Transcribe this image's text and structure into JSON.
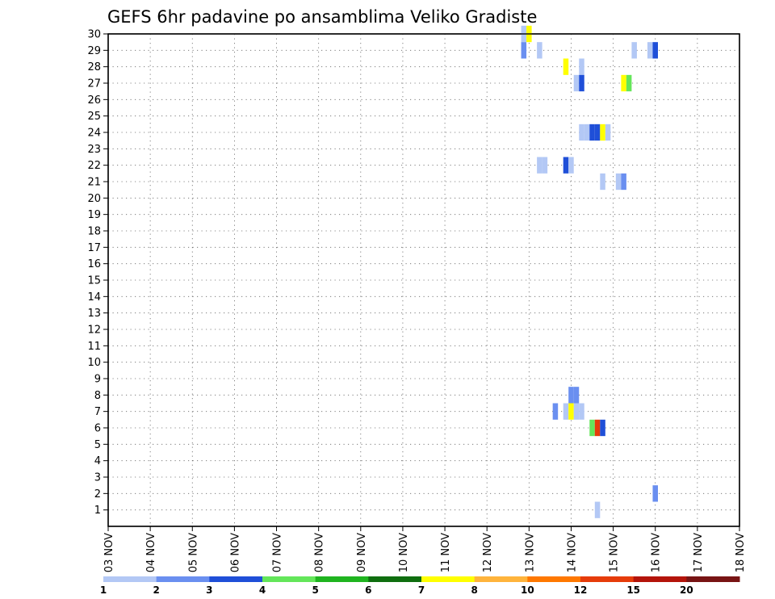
{
  "chart_data": {
    "type": "heatmap",
    "title": "GEFS 6hr padavine po ansamblima Veliko Gradiste",
    "x_tick_labels": [
      "03 NOV",
      "04 NOV",
      "05 NOV",
      "06 NOV",
      "07 NOV",
      "08 NOV",
      "09 NOV",
      "10 NOV",
      "11 NOV",
      "12 NOV",
      "13 NOV",
      "14 NOV",
      "15 NOV",
      "16 NOV",
      "17 NOV",
      "18 NOV"
    ],
    "y_tick_labels": [
      "1",
      "2",
      "3",
      "4",
      "5",
      "6",
      "7",
      "8",
      "9",
      "10",
      "11",
      "12",
      "13",
      "14",
      "15",
      "16",
      "17",
      "18",
      "19",
      "20",
      "21",
      "22",
      "23",
      "24",
      "25",
      "26",
      "27",
      "28",
      "29",
      "30"
    ],
    "xlim": [
      0,
      60
    ],
    "ylim": [
      0,
      30
    ],
    "grid": true,
    "color_levels": [
      {
        "label": "1",
        "color": "#b3c8f5"
      },
      {
        "label": "2",
        "color": "#6a8ff0"
      },
      {
        "label": "3",
        "color": "#1f4fd8"
      },
      {
        "label": "4",
        "color": "#64e65a"
      },
      {
        "label": "5",
        "color": "#1fb41f"
      },
      {
        "label": "6",
        "color": "#0f6e0f"
      },
      {
        "label": "7",
        "color": "#ffff00"
      },
      {
        "label": "8",
        "color": "#ffb43c"
      },
      {
        "label": "10",
        "color": "#ff7800"
      },
      {
        "label": "12",
        "color": "#e63c0a"
      },
      {
        "label": "15",
        "color": "#b4140a"
      },
      {
        "label": "20",
        "color": "#781414"
      }
    ],
    "cells": [
      {
        "member": 30,
        "step": 39.5,
        "level": 0
      },
      {
        "member": 30,
        "step": 40,
        "level": 6
      },
      {
        "member": 29,
        "step": 39.5,
        "level": 1
      },
      {
        "member": 29,
        "step": 41,
        "level": 0
      },
      {
        "member": 29,
        "step": 50,
        "level": 0
      },
      {
        "member": 29,
        "step": 51.5,
        "level": 0
      },
      {
        "member": 29,
        "step": 52,
        "level": 2
      },
      {
        "member": 28,
        "step": 43.5,
        "level": 6
      },
      {
        "member": 28,
        "step": 45,
        "level": 0
      },
      {
        "member": 27,
        "step": 44.5,
        "level": 0
      },
      {
        "member": 27,
        "step": 45,
        "level": 2
      },
      {
        "member": 27,
        "step": 49,
        "level": 6
      },
      {
        "member": 27,
        "step": 49.5,
        "level": 3
      },
      {
        "member": 24,
        "step": 45,
        "level": 0
      },
      {
        "member": 24,
        "step": 45.5,
        "level": 0
      },
      {
        "member": 24,
        "step": 46,
        "level": 2
      },
      {
        "member": 24,
        "step": 46.5,
        "level": 2
      },
      {
        "member": 24,
        "step": 47,
        "level": 6
      },
      {
        "member": 24,
        "step": 47.5,
        "level": 0
      },
      {
        "member": 22,
        "step": 41,
        "level": 0
      },
      {
        "member": 22,
        "step": 41.5,
        "level": 0
      },
      {
        "member": 22,
        "step": 43.5,
        "level": 2
      },
      {
        "member": 22,
        "step": 44,
        "level": 0
      },
      {
        "member": 21,
        "step": 47,
        "level": 0
      },
      {
        "member": 21,
        "step": 48.5,
        "level": 0
      },
      {
        "member": 21,
        "step": 49,
        "level": 1
      },
      {
        "member": 8,
        "step": 44,
        "level": 1
      },
      {
        "member": 8,
        "step": 44.5,
        "level": 1
      },
      {
        "member": 7,
        "step": 42.5,
        "level": 1
      },
      {
        "member": 7,
        "step": 43.5,
        "level": 0
      },
      {
        "member": 7,
        "step": 44,
        "level": 6
      },
      {
        "member": 7,
        "step": 44.5,
        "level": 0
      },
      {
        "member": 7,
        "step": 45,
        "level": 0
      },
      {
        "member": 6,
        "step": 46,
        "level": 3
      },
      {
        "member": 6,
        "step": 46.5,
        "level": 9
      },
      {
        "member": 6,
        "step": 47,
        "level": 2
      },
      {
        "member": 2,
        "step": 52,
        "level": 1
      },
      {
        "member": 1,
        "step": 46.5,
        "level": 0
      }
    ]
  }
}
